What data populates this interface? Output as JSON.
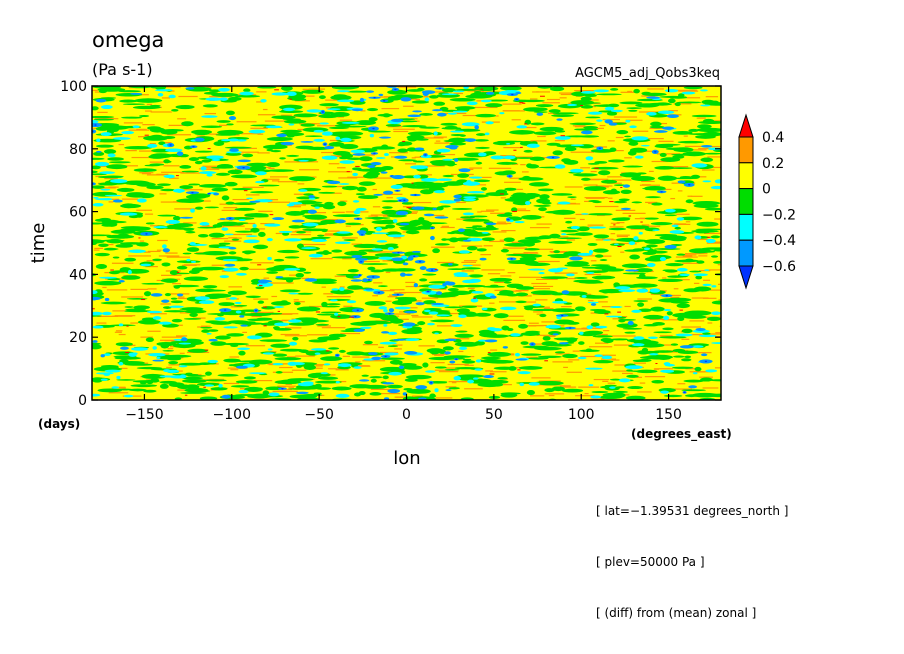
{
  "chart_data": {
    "type": "heatmap",
    "title": "omega",
    "units": "(Pa s-1)",
    "dataset": "AGCM5_adj_Qobs3keq",
    "xlabel": "lon",
    "ylabel": "time",
    "x_units": "(degrees_east)",
    "y_units": "(days)",
    "xlim": [
      -180,
      180
    ],
    "ylim": [
      0,
      100
    ],
    "x_ticks": [
      -150,
      -100,
      -50,
      0,
      50,
      100,
      150
    ],
    "x_tick_labels": [
      "−150",
      "−100",
      "−50",
      "0",
      "50",
      "100",
      "150"
    ],
    "y_ticks": [
      0,
      20,
      40,
      60,
      80,
      100
    ],
    "y_tick_labels": [
      "0",
      "20",
      "40",
      "60",
      "80",
      "100"
    ],
    "colorbar": {
      "levels": [
        0.4,
        0.2,
        0,
        -0.2,
        -0.4,
        -0.6
      ],
      "level_labels": [
        "0.4",
        "0.2",
        "0",
        "−0.2",
        "−0.4",
        "−0.6"
      ],
      "colors": [
        "#ff0000",
        "#ff9900",
        "#ffff00",
        "#00dd00",
        "#00ffff",
        "#0099ff",
        "#0033ff"
      ],
      "extend": "both"
    },
    "annotations": [
      "[ lat=−1.39531 degrees_north ]",
      "[ plev=50000 Pa ]",
      "[ (diff) from (mean) zonal ]"
    ]
  }
}
